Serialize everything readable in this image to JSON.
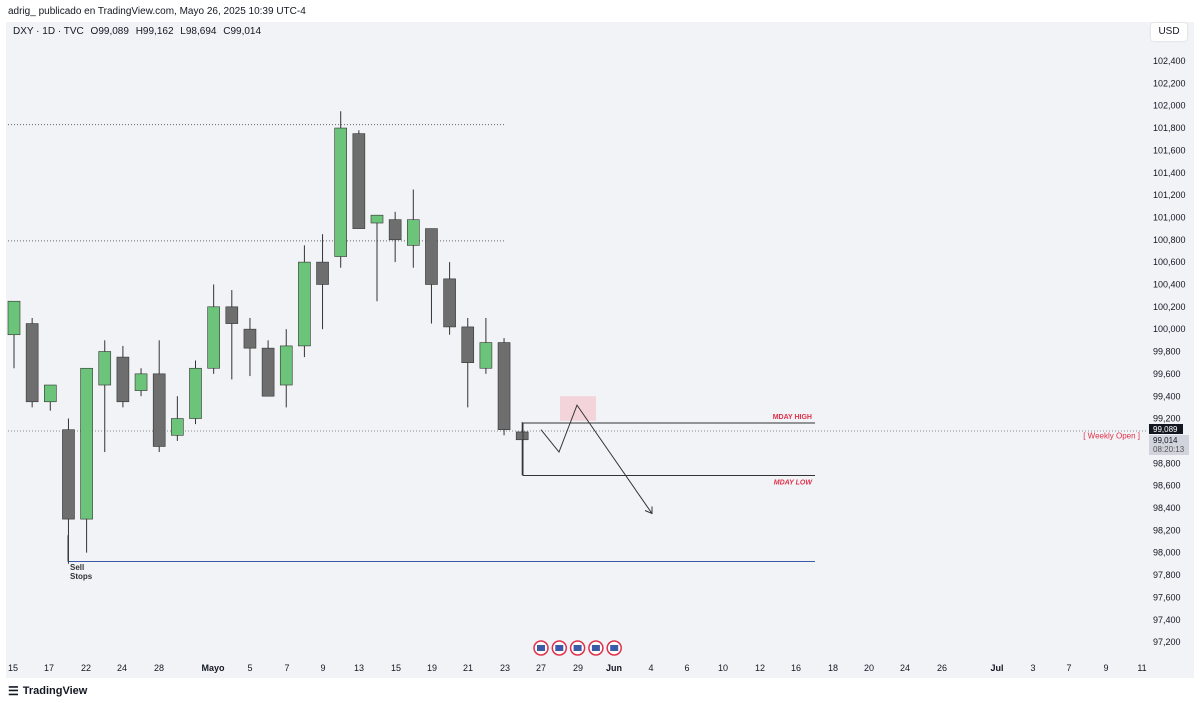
{
  "header": {
    "byline": "adrig_ publicado en TradingView.com, Mayo 26, 2025 10:39 UTC-4"
  },
  "symbol": {
    "name": "DXY · 1D · TVC",
    "open": "O99,089",
    "high": "H99,162",
    "low": "L98,694",
    "close": "C99,014"
  },
  "currency_button": "USD",
  "footer": {
    "brand": "TradingView",
    "logo": "tv-logo-icon"
  },
  "colors": {
    "up": "#6cc47a",
    "down": "#6e6e6e",
    "line": "#3b5ba8",
    "label": "#e0304a",
    "bg": "#f1f3f6"
  },
  "chart_data": {
    "type": "candlestick",
    "y_ticks": [
      "102,400",
      "102,200",
      "102,000",
      "101,800",
      "101,600",
      "101,400",
      "101,200",
      "101,000",
      "100,800",
      "100,600",
      "100,400",
      "100,200",
      "100,000",
      "99,800",
      "99,600",
      "99,400",
      "99,200",
      "99,000",
      "98,800",
      "98,600",
      "98,400",
      "98,200",
      "98,000",
      "97,800",
      "97,600",
      "97,400",
      "97,200"
    ],
    "ylim": [
      97.1,
      102.5
    ],
    "x_ticks": [
      "15",
      "17",
      "22",
      "24",
      "28",
      "Mayo",
      "5",
      "7",
      "9",
      "13",
      "15",
      "19",
      "21",
      "23",
      "27",
      "29",
      "Jun",
      "4",
      "6",
      "10",
      "12",
      "16",
      "18",
      "20",
      "24",
      "26",
      "Jul",
      "3",
      "7",
      "9",
      "11"
    ],
    "candles": [
      {
        "o": 99.95,
        "h": 100.25,
        "l": 99.65,
        "c": 100.25
      },
      {
        "o": 100.05,
        "h": 100.1,
        "l": 99.3,
        "c": 99.35
      },
      {
        "o": 99.35,
        "h": 99.5,
        "l": 99.27,
        "c": 99.5
      },
      {
        "o": 99.1,
        "h": 99.2,
        "l": 97.9,
        "c": 98.3
      },
      {
        "o": 98.3,
        "h": 99.65,
        "l": 98.0,
        "c": 99.65
      },
      {
        "o": 99.5,
        "h": 99.9,
        "l": 98.9,
        "c": 99.8
      },
      {
        "o": 99.75,
        "h": 99.85,
        "l": 99.3,
        "c": 99.35
      },
      {
        "o": 99.45,
        "h": 99.65,
        "l": 99.4,
        "c": 99.6
      },
      {
        "o": 99.6,
        "h": 99.9,
        "l": 98.9,
        "c": 98.95
      },
      {
        "o": 99.05,
        "h": 99.4,
        "l": 99.0,
        "c": 99.2
      },
      {
        "o": 99.2,
        "h": 99.72,
        "l": 99.15,
        "c": 99.65
      },
      {
        "o": 99.65,
        "h": 100.4,
        "l": 99.6,
        "c": 100.2
      },
      {
        "o": 100.2,
        "h": 100.35,
        "l": 99.55,
        "c": 100.05
      },
      {
        "o": 100.0,
        "h": 100.1,
        "l": 99.58,
        "c": 99.83
      },
      {
        "o": 99.83,
        "h": 99.9,
        "l": 99.4,
        "c": 99.4
      },
      {
        "o": 99.5,
        "h": 100.0,
        "l": 99.3,
        "c": 99.85
      },
      {
        "o": 99.85,
        "h": 100.75,
        "l": 99.75,
        "c": 100.6
      },
      {
        "o": 100.6,
        "h": 100.85,
        "l": 100.0,
        "c": 100.4
      },
      {
        "o": 100.65,
        "h": 101.95,
        "l": 100.55,
        "c": 101.8
      },
      {
        "o": 101.75,
        "h": 101.78,
        "l": 100.9,
        "c": 100.9
      },
      {
        "o": 100.95,
        "h": 101.02,
        "l": 100.25,
        "c": 101.02
      },
      {
        "o": 100.98,
        "h": 101.05,
        "l": 100.6,
        "c": 100.8
      },
      {
        "o": 100.75,
        "h": 101.25,
        "l": 100.55,
        "c": 100.98
      },
      {
        "o": 100.9,
        "h": 100.9,
        "l": 100.05,
        "c": 100.4
      },
      {
        "o": 100.45,
        "h": 100.6,
        "l": 99.95,
        "c": 100.02
      },
      {
        "o": 100.02,
        "h": 100.1,
        "l": 99.3,
        "c": 99.7
      },
      {
        "o": 99.65,
        "h": 100.1,
        "l": 99.6,
        "c": 99.88
      },
      {
        "o": 99.88,
        "h": 99.92,
        "l": 99.05,
        "c": 99.1
      },
      {
        "o": 99.08,
        "h": 99.17,
        "l": 98.69,
        "c": 99.01
      }
    ],
    "levels": [
      {
        "price": 101.83,
        "style": "dotted"
      },
      {
        "price": 100.79,
        "style": "dotted"
      },
      {
        "price": 99.089,
        "style": "dotted"
      },
      {
        "price": 97.92,
        "style": "solid",
        "name": "sell-stops"
      }
    ],
    "annotations": {
      "mday_high": {
        "label": "MDAY HIGH",
        "price": 99.16
      },
      "mday_low": {
        "label": "MDAY LOW",
        "price": 98.69
      },
      "weekly_open": {
        "label": "[ Weekly Open ]"
      },
      "sell_stops": {
        "label_line1": "Sell",
        "label_line2": "Stops"
      },
      "path": [
        99.1,
        98.9,
        99.32,
        98.35
      ]
    },
    "price_tags": {
      "last": "99,089",
      "close": "99,014",
      "countdown": "08:20:13"
    },
    "event_icons": 5
  }
}
